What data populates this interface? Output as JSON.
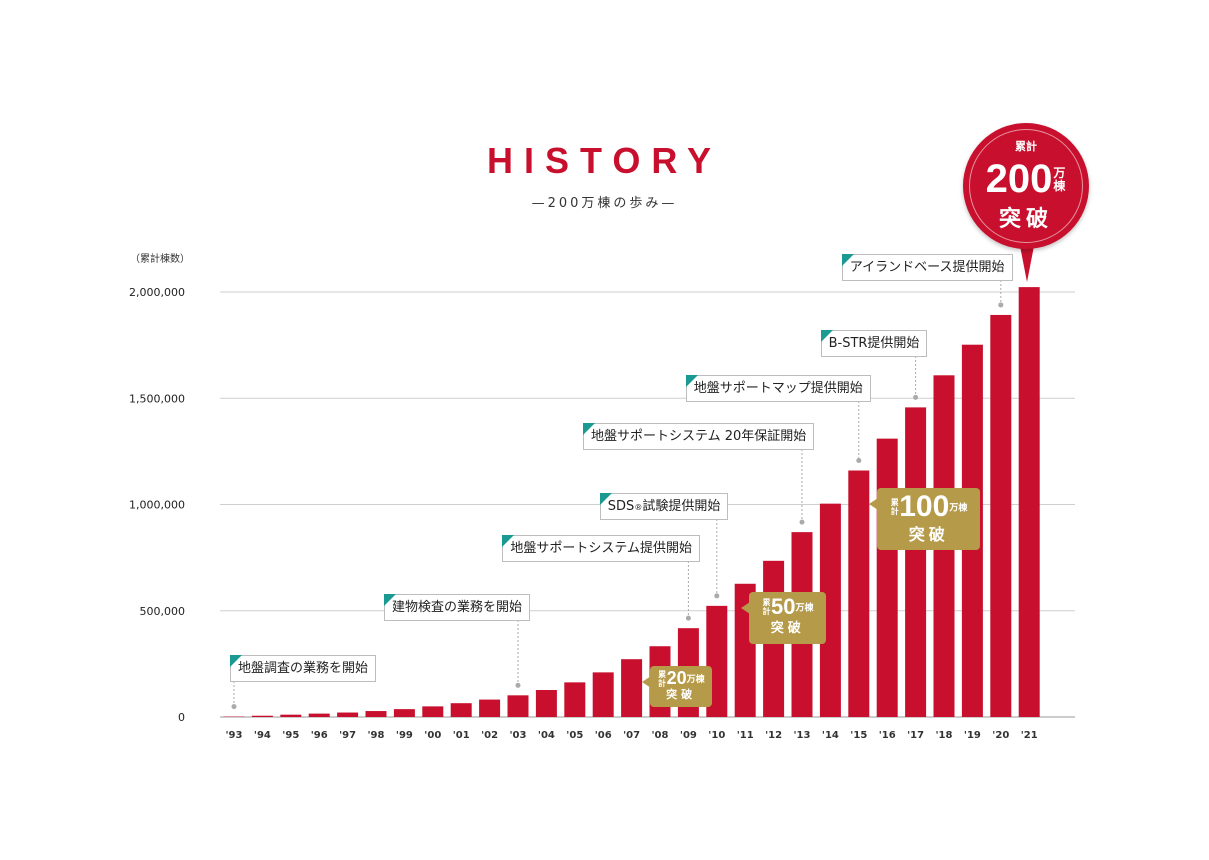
{
  "header": {
    "title": "HISTORY",
    "subtitle": "—200万棟の歩み—",
    "unit_label": "（累計棟数）"
  },
  "colors": {
    "bar": "#c8102e",
    "gold": "#b59a49",
    "accent": "#1a9a92"
  },
  "chart_data": {
    "type": "bar",
    "title": "HISTORY",
    "subtitle": "—200万棟の歩み—",
    "ylabel": "（累計棟数）",
    "xlabel": "",
    "ylim": [
      0,
      2000000
    ],
    "yticks": [
      0,
      500000,
      1000000,
      1500000,
      2000000
    ],
    "ytick_labels": [
      "0",
      "500,000",
      "1,000,000",
      "1,500,000",
      "2,000,000"
    ],
    "categories": [
      "'93",
      "'94",
      "'95",
      "'96",
      "'97",
      "'98",
      "'99",
      "'00",
      "'01",
      "'02",
      "'03",
      "'04",
      "'05",
      "'06",
      "'07",
      "'08",
      "'09",
      "'10",
      "'11",
      "'12",
      "'13",
      "'14",
      "'15",
      "'16",
      "'17",
      "'18",
      "'19",
      "'20",
      "'21"
    ],
    "values": [
      2000,
      6000,
      11000,
      16000,
      21000,
      28000,
      37000,
      50000,
      65000,
      82000,
      102000,
      127000,
      163000,
      210000,
      272000,
      333000,
      418000,
      523000,
      627000,
      735000,
      870000,
      1004000,
      1160000,
      1310000,
      1457000,
      1608000,
      1752000,
      1892000,
      2023000
    ],
    "grid": true,
    "annotations": [
      {
        "year": "'93",
        "text": "地盤調査の業務を開始"
      },
      {
        "year": "'03",
        "text": "建物検査の業務を開始"
      },
      {
        "year": "'09",
        "text": "地盤サポートシステム提供開始"
      },
      {
        "year": "'10",
        "text": "SDS",
        "reg": "®",
        "text_after": "試験提供開始"
      },
      {
        "year": "'13",
        "text": "地盤サポートシステム 20年保証開始"
      },
      {
        "year": "'15",
        "text": "地盤サポートマップ提供開始"
      },
      {
        "year": "'17",
        "text": "B-STR提供開始"
      },
      {
        "year": "'20",
        "text": "アイランドベース提供開始"
      }
    ],
    "milestones": [
      {
        "year": "'07",
        "prefix": "累計",
        "number": "20",
        "suffix": "万棟",
        "bottom": "突破"
      },
      {
        "year": "'10",
        "prefix": "累計",
        "number": "50",
        "suffix": "万棟",
        "bottom": "突破"
      },
      {
        "year": "'15",
        "prefix": "累計",
        "number": "100",
        "suffix": "万棟",
        "bottom": "突破"
      }
    ],
    "highlight": {
      "year": "'21",
      "top": "累計",
      "number": "200",
      "suffix": "万棟",
      "bottom": "突破"
    }
  }
}
